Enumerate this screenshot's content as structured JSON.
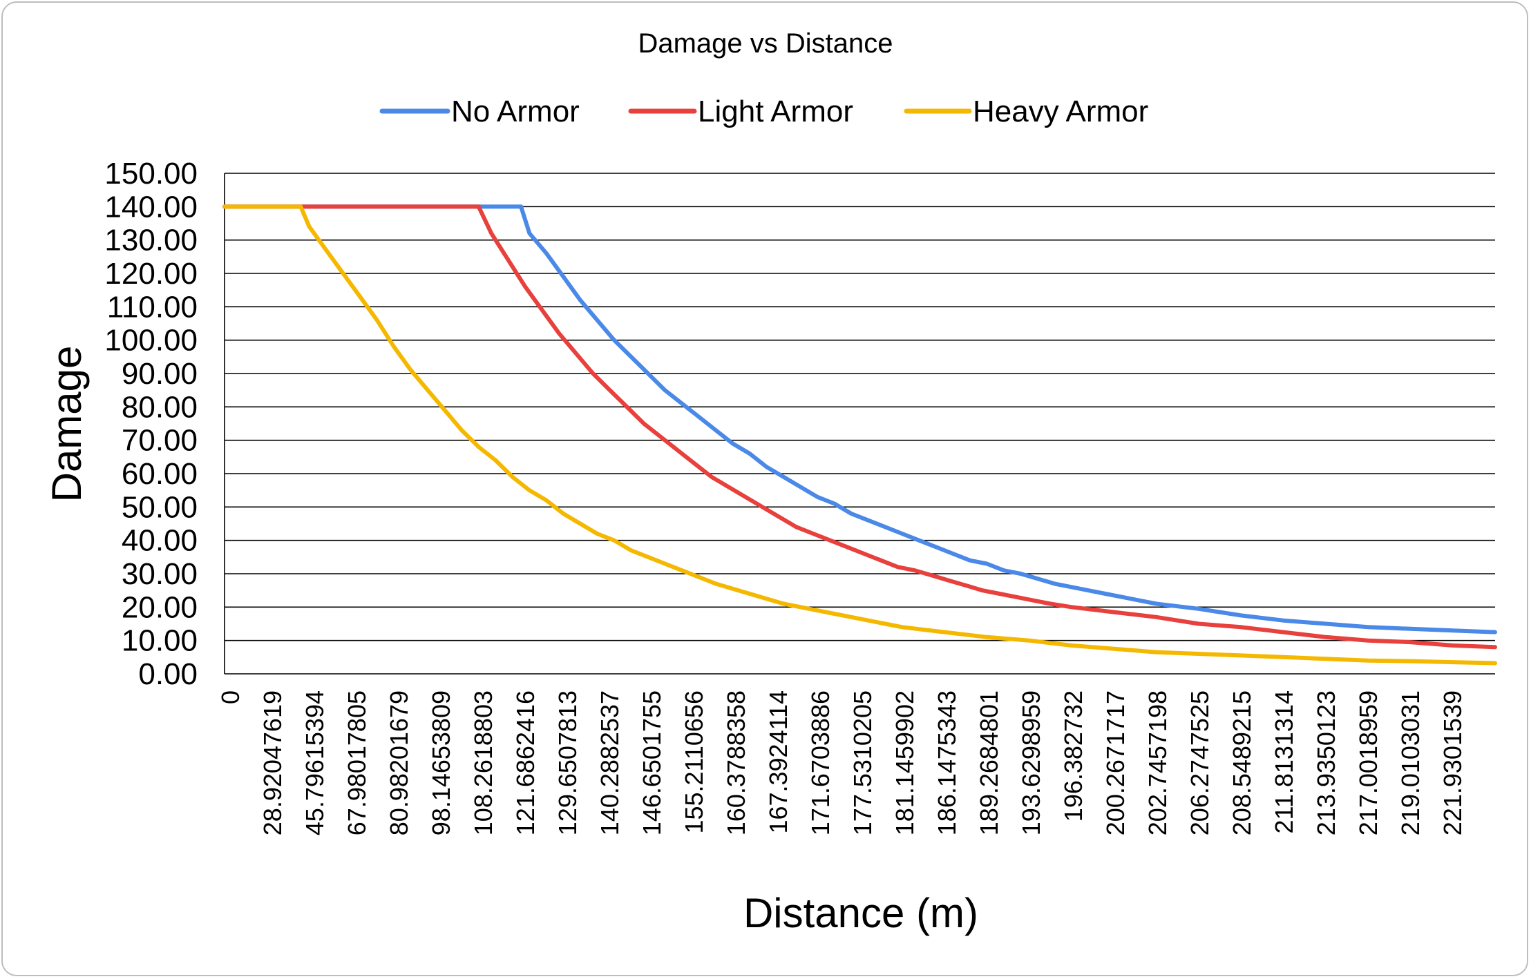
{
  "chart_data": {
    "type": "line",
    "title": "Damage vs Distance",
    "xlabel": "Distance (m)",
    "ylabel": "Damage",
    "ylim": [
      0,
      150
    ],
    "y_ticks": [
      "0.00",
      "10.00",
      "20.00",
      "30.00",
      "40.00",
      "50.00",
      "60.00",
      "70.00",
      "80.00",
      "90.00",
      "100.00",
      "110.00",
      "120.00",
      "130.00",
      "140.00",
      "150.00"
    ],
    "x_tick_labels": [
      "0",
      "28.92047619",
      "45.79615394",
      "67.98017805",
      "80.98201679",
      "98.14653809",
      "108.2618803",
      "121.6862416",
      "129.6507813",
      "140.2882537",
      "146.6501755",
      "155.2110656",
      "160.3788358",
      "167.3924114",
      "171.6703886",
      "177.5310205",
      "181.1459902",
      "186.1475343",
      "189.2684801",
      "193.6298959",
      "196.382732",
      "200.2671717",
      "202.7457198",
      "206.2747525",
      "208.5489215",
      "211.8131314",
      "213.9350123",
      "217.0018959",
      "219.0103031",
      "221.9301539"
    ],
    "grid": "horizontal",
    "legend_position": "top",
    "x_domain": [
      0,
      300
    ],
    "series": [
      {
        "name": "No Armor",
        "color": "#4A89E8",
        "points": [
          [
            0,
            140
          ],
          [
            60,
            140
          ],
          [
            70,
            140
          ],
          [
            72,
            132
          ],
          [
            76,
            126
          ],
          [
            80,
            119
          ],
          [
            84,
            112
          ],
          [
            88,
            106
          ],
          [
            92,
            100
          ],
          [
            96,
            95
          ],
          [
            100,
            90
          ],
          [
            104,
            85
          ],
          [
            108,
            81
          ],
          [
            112,
            77
          ],
          [
            116,
            73
          ],
          [
            120,
            69
          ],
          [
            124,
            66
          ],
          [
            128,
            62
          ],
          [
            132,
            59
          ],
          [
            136,
            56
          ],
          [
            140,
            53
          ],
          [
            144,
            51
          ],
          [
            148,
            48
          ],
          [
            152,
            46
          ],
          [
            156,
            44
          ],
          [
            160,
            42
          ],
          [
            164,
            40
          ],
          [
            168,
            38
          ],
          [
            172,
            36
          ],
          [
            176,
            34
          ],
          [
            180,
            33
          ],
          [
            184,
            31
          ],
          [
            188,
            30
          ],
          [
            192,
            28.5
          ],
          [
            196,
            27
          ],
          [
            200,
            26
          ],
          [
            204,
            25
          ],
          [
            208,
            24
          ],
          [
            212,
            23
          ],
          [
            216,
            22
          ],
          [
            220,
            21
          ],
          [
            230,
            19.5
          ],
          [
            240,
            17.5
          ],
          [
            250,
            16
          ],
          [
            260,
            15
          ],
          [
            270,
            14
          ],
          [
            280,
            13.5
          ],
          [
            290,
            13
          ],
          [
            300,
            12.5
          ]
        ]
      },
      {
        "name": "Light Armor",
        "color": "#E8403C",
        "points": [
          [
            0,
            140
          ],
          [
            50,
            140
          ],
          [
            60,
            140
          ],
          [
            63,
            132
          ],
          [
            67,
            124
          ],
          [
            71,
            116
          ],
          [
            75,
            109
          ],
          [
            79,
            102
          ],
          [
            83,
            96
          ],
          [
            87,
            90
          ],
          [
            91,
            85
          ],
          [
            95,
            80
          ],
          [
            99,
            75
          ],
          [
            103,
            71
          ],
          [
            107,
            67
          ],
          [
            111,
            63
          ],
          [
            115,
            59
          ],
          [
            119,
            56
          ],
          [
            123,
            53
          ],
          [
            127,
            50
          ],
          [
            131,
            47
          ],
          [
            135,
            44
          ],
          [
            139,
            42
          ],
          [
            143,
            40
          ],
          [
            147,
            38
          ],
          [
            151,
            36
          ],
          [
            155,
            34
          ],
          [
            159,
            32
          ],
          [
            163,
            31
          ],
          [
            167,
            29.5
          ],
          [
            171,
            28
          ],
          [
            175,
            26.5
          ],
          [
            179,
            25
          ],
          [
            183,
            24
          ],
          [
            187,
            23
          ],
          [
            191,
            22
          ],
          [
            195,
            21
          ],
          [
            200,
            20
          ],
          [
            210,
            18.5
          ],
          [
            220,
            17
          ],
          [
            230,
            15
          ],
          [
            240,
            14
          ],
          [
            250,
            12.5
          ],
          [
            260,
            11
          ],
          [
            270,
            10
          ],
          [
            280,
            9.5
          ],
          [
            290,
            8.5
          ],
          [
            300,
            8
          ]
        ]
      },
      {
        "name": "Heavy Armor",
        "color": "#F5B800",
        "points": [
          [
            0,
            140
          ],
          [
            18,
            140
          ],
          [
            20,
            134
          ],
          [
            24,
            127
          ],
          [
            28,
            120
          ],
          [
            32,
            113
          ],
          [
            36,
            106
          ],
          [
            40,
            98
          ],
          [
            44,
            91
          ],
          [
            48,
            85
          ],
          [
            52,
            79
          ],
          [
            56,
            73
          ],
          [
            60,
            68
          ],
          [
            64,
            64
          ],
          [
            68,
            59
          ],
          [
            72,
            55
          ],
          [
            76,
            52
          ],
          [
            80,
            48
          ],
          [
            84,
            45
          ],
          [
            88,
            42
          ],
          [
            92,
            40
          ],
          [
            96,
            37
          ],
          [
            100,
            35
          ],
          [
            104,
            33
          ],
          [
            108,
            31
          ],
          [
            112,
            29
          ],
          [
            116,
            27
          ],
          [
            120,
            25.5
          ],
          [
            124,
            24
          ],
          [
            128,
            22.5
          ],
          [
            132,
            21
          ],
          [
            136,
            20
          ],
          [
            140,
            19
          ],
          [
            144,
            18
          ],
          [
            148,
            17
          ],
          [
            152,
            16
          ],
          [
            156,
            15
          ],
          [
            160,
            14
          ],
          [
            170,
            12.5
          ],
          [
            180,
            11
          ],
          [
            190,
            10
          ],
          [
            200,
            8.5
          ],
          [
            210,
            7.5
          ],
          [
            220,
            6.5
          ],
          [
            230,
            6
          ],
          [
            240,
            5.5
          ],
          [
            250,
            5
          ],
          [
            260,
            4.5
          ],
          [
            270,
            4
          ],
          [
            280,
            3.8
          ],
          [
            290,
            3.5
          ],
          [
            300,
            3.2
          ]
        ]
      }
    ]
  }
}
